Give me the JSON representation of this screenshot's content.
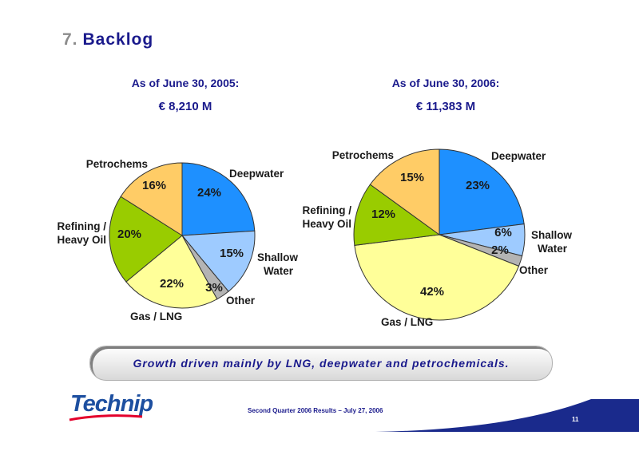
{
  "header": {
    "number": "7.",
    "title": "Backlog"
  },
  "left": {
    "as_of": "As of June 30, 2005:",
    "total": "€ 8,210 M"
  },
  "right": {
    "as_of": "As of June 30, 2006:",
    "total": "€ 11,383 M"
  },
  "callout": "Growth driven mainly by LNG, deepwater and petrochemicals.",
  "footer": {
    "text": "Second Quarter 2006 Results – July 27, 2006",
    "page": "11",
    "logo": "Technip"
  },
  "colors": {
    "Deepwater": "#1e90ff",
    "Shallow Water": "#9ecbff",
    "Other": "#b4b4b4",
    "Gas / LNG": "#ffff99",
    "Refining / Heavy Oil": "#99cc00",
    "Petrochems": "#ffcc66"
  },
  "chart_data": [
    {
      "type": "pie",
      "title": "As of June 30, 2005:",
      "subtitle": "€ 8,210 M",
      "categories": [
        "Deepwater",
        "Shallow Water",
        "Other",
        "Gas / LNG",
        "Refining / Heavy Oil",
        "Petrochems"
      ],
      "values": [
        24,
        15,
        3,
        22,
        20,
        16
      ],
      "labels": [
        "24%",
        "15%",
        "3%",
        "22%",
        "20%",
        "16%"
      ]
    },
    {
      "type": "pie",
      "title": "As of June 30, 2006:",
      "subtitle": "€ 11,383 M",
      "categories": [
        "Deepwater",
        "Shallow Water",
        "Other",
        "Gas / LNG",
        "Refining / Heavy Oil",
        "Petrochems"
      ],
      "values": [
        23,
        6,
        2,
        42,
        12,
        15
      ],
      "labels": [
        "23%",
        "6%",
        "2%",
        "42%",
        "12%",
        "15%"
      ]
    }
  ]
}
